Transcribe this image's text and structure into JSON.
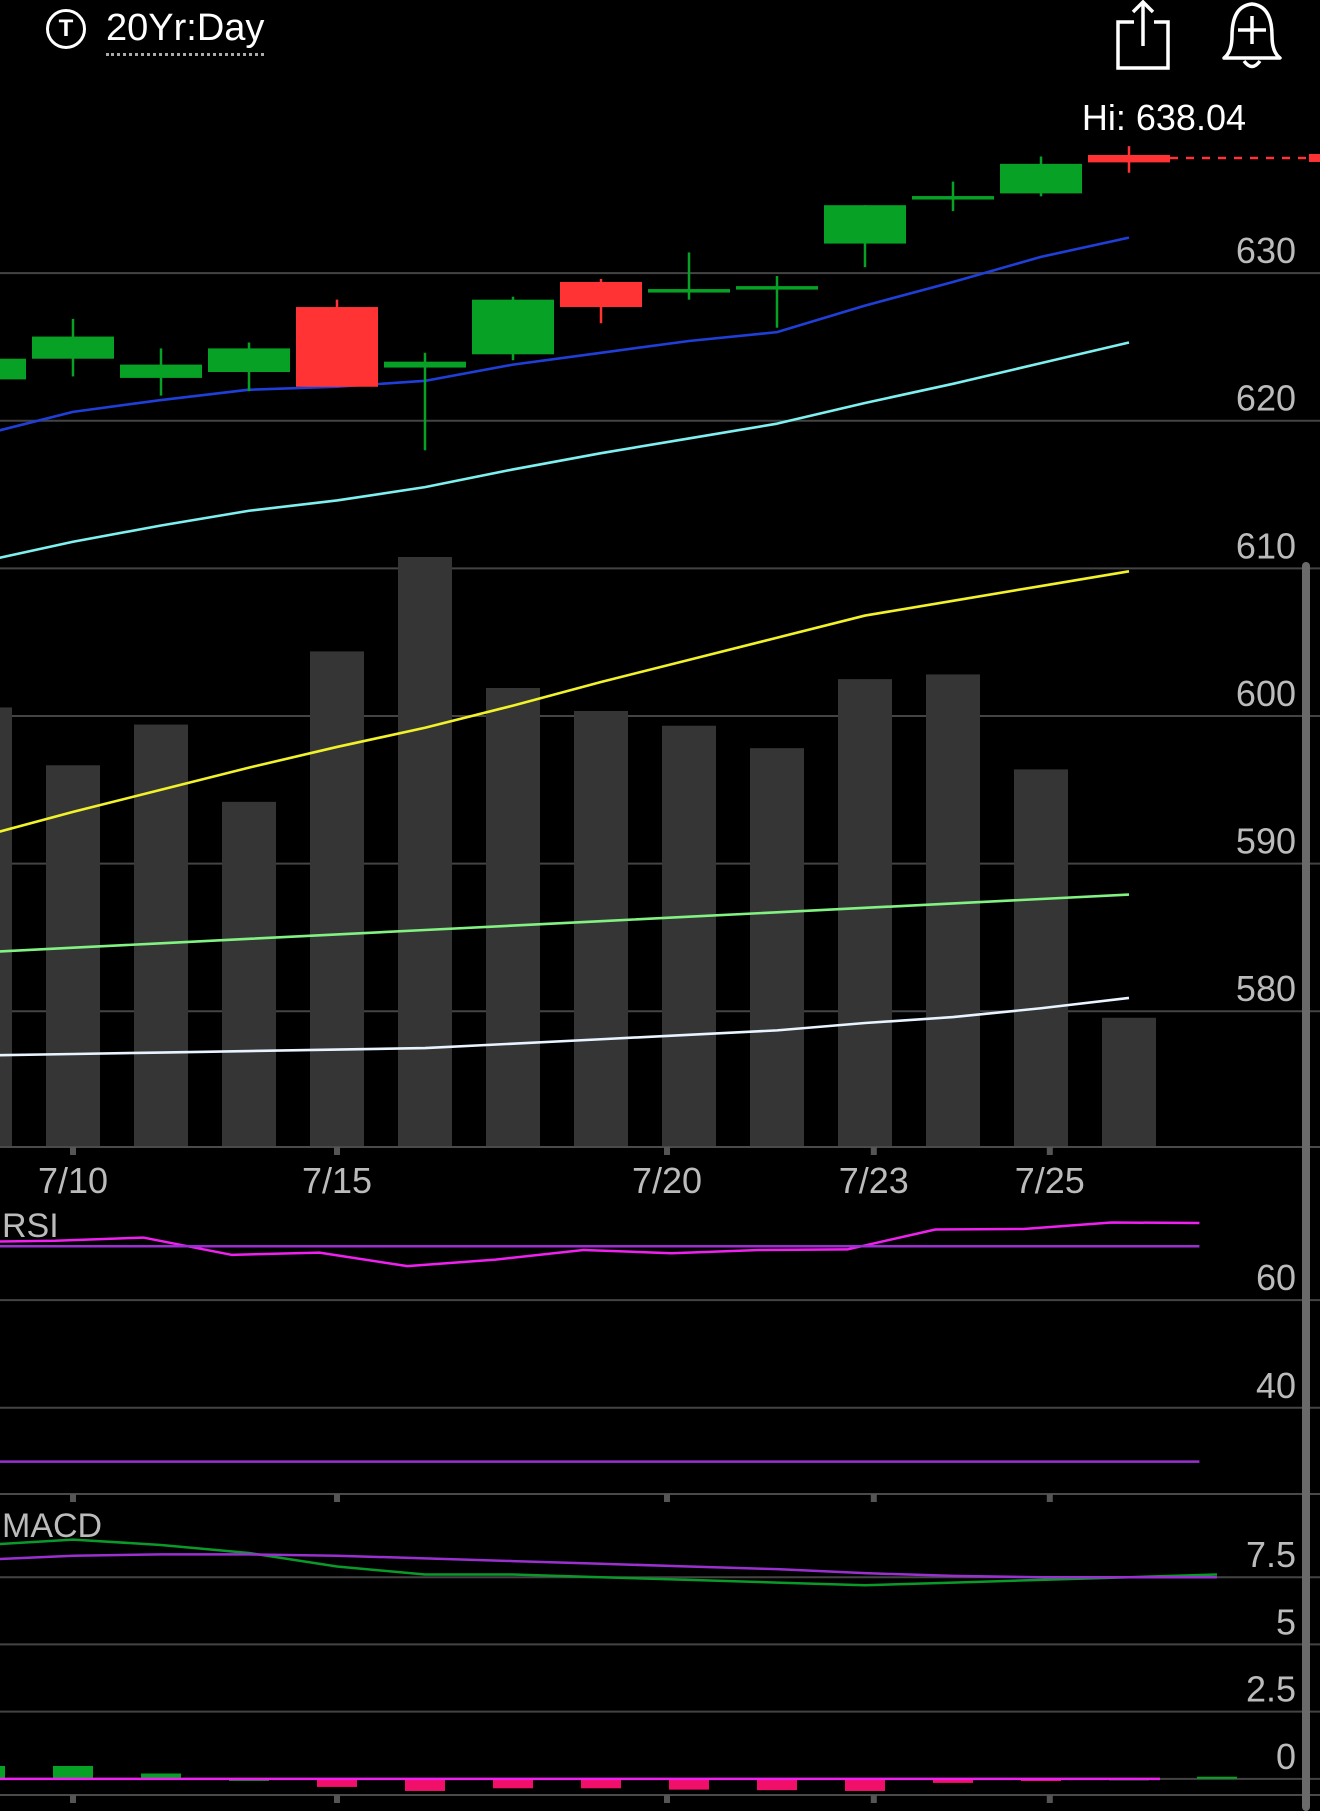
{
  "header": {
    "timeframe_icon": "T",
    "timeframe_label": "20Yr:Day",
    "share_icon": "share-icon",
    "alert_icon": "add-alert-bell-icon"
  },
  "hi_label": "Hi: 638.04",
  "colors": {
    "up": "#06a125",
    "down": "#ff3333",
    "ma_blue": "#1f3fd8",
    "ma_cyan": "#7ff0f0",
    "ma_yellow": "#f2f22a",
    "ma_green": "#82f282",
    "ma_white": "#e8f4ff",
    "rsi": "#f020f0",
    "rsi_signal": "#9a30d0",
    "macd": "#0a9a2a",
    "macd_signal": "#9a30d0",
    "volume": "#353535",
    "grid": "#444444"
  },
  "chart_data": [
    {
      "type": "candlestick",
      "title": "",
      "xlabel": "",
      "ylabel": "",
      "ylim": [
        570.8,
        648.5
      ],
      "y_ticks": [
        580,
        590,
        600,
        610,
        620,
        630
      ],
      "x_tick_labels": [
        {
          "index": 1,
          "label": "7/10"
        },
        {
          "index": 4,
          "label": "7/15"
        },
        {
          "index": 7.75,
          "label": "7/20"
        },
        {
          "index": 10.1,
          "label": "7/23"
        },
        {
          "index": 12.1,
          "label": "7/25"
        }
      ],
      "candles": [
        {
          "open": 622.8,
          "close": 624.2,
          "high": 624.8,
          "low": 621.0
        },
        {
          "open": 624.2,
          "close": 625.7,
          "high": 626.9,
          "low": 623.0
        },
        {
          "open": 622.9,
          "close": 623.8,
          "high": 624.9,
          "low": 621.7
        },
        {
          "open": 623.3,
          "close": 624.9,
          "high": 625.3,
          "low": 622.0
        },
        {
          "open": 627.7,
          "close": 622.3,
          "high": 628.2,
          "low": 622.3
        },
        {
          "open": 623.6,
          "close": 624.0,
          "high": 624.6,
          "low": 618.0
        },
        {
          "open": 624.5,
          "close": 628.2,
          "high": 628.4,
          "low": 624.1
        },
        {
          "open": 629.4,
          "close": 627.7,
          "high": 629.6,
          "low": 626.6
        },
        {
          "open": 628.6,
          "close": 628.8,
          "high": 631.4,
          "low": 628.2
        },
        {
          "open": 629.0,
          "close": 629.0,
          "high": 629.8,
          "low": 626.3
        },
        {
          "open": 632.0,
          "close": 634.6,
          "high": 634.6,
          "low": 630.4
        },
        {
          "open": 635.1,
          "close": 635.1,
          "high": 636.2,
          "low": 634.2
        },
        {
          "open": 635.4,
          "close": 637.4,
          "high": 637.9,
          "low": 635.2
        },
        {
          "open": 638.0,
          "close": 637.5,
          "high": 638.6,
          "low": 636.8
        }
      ],
      "last_price": 637.8,
      "moving_averages": [
        {
          "color_key": "ma_blue",
          "values": [
            619.1,
            620.6,
            621.4,
            622.1,
            622.3,
            622.7,
            623.8,
            624.6,
            625.4,
            626.0,
            627.8,
            629.4,
            631.1,
            632.4
          ]
        },
        {
          "color_key": "ma_cyan",
          "values": [
            610.5,
            611.8,
            612.9,
            613.9,
            614.6,
            615.5,
            616.7,
            617.8,
            618.8,
            619.8,
            621.2,
            622.5,
            623.9,
            625.3
          ]
        },
        {
          "color_key": "ma_yellow",
          "values": [
            591.9,
            593.5,
            595.0,
            596.5,
            597.9,
            599.2,
            600.7,
            602.3,
            603.8,
            605.3,
            606.8,
            607.8,
            608.8,
            609.8
          ]
        },
        {
          "color_key": "ma_green",
          "values": [
            584.0,
            584.3,
            584.6,
            584.9,
            585.2,
            585.5,
            585.8,
            586.1,
            586.4,
            586.7,
            587.0,
            587.3,
            587.6,
            587.9
          ]
        },
        {
          "color_key": "ma_white",
          "values": [
            577.0,
            577.1,
            577.2,
            577.3,
            577.4,
            577.5,
            577.8,
            578.1,
            578.4,
            578.7,
            579.2,
            579.6,
            580.2,
            580.9
          ]
        }
      ],
      "volume_relative": [
        0.745,
        0.647,
        0.716,
        0.585,
        0.84,
        1.0,
        0.778,
        0.739,
        0.714,
        0.676,
        0.793,
        0.801,
        0.64,
        0.219
      ]
    },
    {
      "type": "line",
      "title": "RSI",
      "xlabel": "",
      "ylabel": "",
      "ylim": [
        24,
        86
      ],
      "y_ticks": [
        40,
        60
      ],
      "series": [
        {
          "color_key": "rsi",
          "values": [
            70.8,
            71.0,
            71.6,
            68.4,
            68.8,
            66.3,
            67.5,
            69.3,
            68.7,
            69.3,
            69.4,
            73.1,
            73.2,
            74.4,
            74.3
          ]
        },
        {
          "color_key": "rsi_signal",
          "values": [
            70.0,
            70.0,
            70.0,
            70.0,
            70.0,
            70.0,
            70.0,
            70.0,
            70.0,
            70.0,
            70.0,
            70.0,
            70.0,
            70.0,
            70.0
          ]
        },
        {
          "color_key": "rsi_signal",
          "values": [
            30.0,
            30.0,
            30.0,
            30.0,
            30.0,
            30.0,
            30.0,
            30.0,
            30.0,
            30.0,
            30.0,
            30.0,
            30.0,
            30.0,
            30.0
          ]
        }
      ]
    },
    {
      "type": "bar+line",
      "title": "MACD",
      "xlabel": "",
      "ylabel": "",
      "ylim": [
        -0.6,
        10.0
      ],
      "y_ticks": [
        0,
        2.5,
        5,
        7.5
      ],
      "series": [
        {
          "color_key": "macd",
          "values": [
            8.7,
            8.9,
            8.7,
            8.4,
            7.9,
            7.6,
            7.6,
            7.5,
            7.4,
            7.3,
            7.2,
            7.3,
            7.4,
            7.5,
            7.6
          ]
        },
        {
          "color_key": "macd_signal",
          "values": [
            8.15,
            8.3,
            8.35,
            8.35,
            8.3,
            8.2,
            8.1,
            8.0,
            7.9,
            7.8,
            7.65,
            7.55,
            7.5,
            7.5,
            7.5
          ]
        }
      ],
      "histogram": [
        0.48,
        0.48,
        0.2,
        0.0,
        -0.3,
        -0.45,
        -0.35,
        -0.35,
        -0.4,
        -0.42,
        -0.45,
        -0.15,
        -0.08,
        0.02,
        0.08
      ]
    }
  ]
}
